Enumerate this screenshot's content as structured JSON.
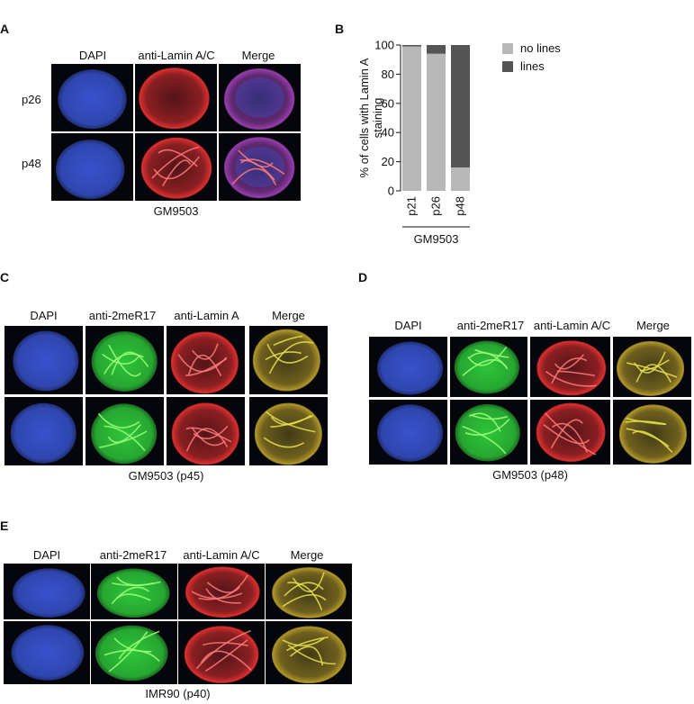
{
  "panels": {
    "A": {
      "label": "A",
      "columns": [
        "DAPI",
        "anti-Lamin A/C",
        "Merge"
      ],
      "rows": [
        "p26",
        "p48"
      ],
      "caption": "GM9503"
    },
    "B": {
      "label": "B",
      "legend": [
        {
          "name": "no lines",
          "color": "#b8b8b8"
        },
        {
          "name": "lines",
          "color": "#555555"
        }
      ],
      "caption": "GM9503"
    },
    "C": {
      "label": "C",
      "columns": [
        "DAPI",
        "anti-2meR17",
        "anti-Lamin A",
        "Merge"
      ],
      "caption": "GM9503 (p45)"
    },
    "D": {
      "label": "D",
      "columns": [
        "DAPI",
        "anti-2meR17",
        "anti-Lamin A/C",
        "Merge"
      ],
      "caption": "GM9503 (p48)"
    },
    "E": {
      "label": "E",
      "columns": [
        "DAPI",
        "anti-2meR17",
        "anti-Lamin A/C",
        "Merge"
      ],
      "caption": "IMR90 (p40)"
    }
  },
  "chart_data": {
    "type": "bar",
    "stacked": true,
    "categories": [
      "p21",
      "p26",
      "p48"
    ],
    "series": [
      {
        "name": "no lines",
        "values": [
          99,
          94,
          16
        ],
        "color": "#b8b8b8"
      },
      {
        "name": "lines",
        "values": [
          1,
          6,
          84
        ],
        "color": "#555555"
      }
    ],
    "ylabel": "% of cells with Lamin A staining",
    "xlabel": "GM9503",
    "ylim": [
      0,
      100
    ],
    "yticks": [
      0,
      20,
      40,
      60,
      80,
      100
    ],
    "legend_position": "right"
  },
  "image_colors": {
    "dapi": "#3a56d8",
    "lamin": "#e23030",
    "merge_a": "#9a3fb0",
    "green": "#2fcf3a",
    "merge_cd": "#b49a2a"
  }
}
